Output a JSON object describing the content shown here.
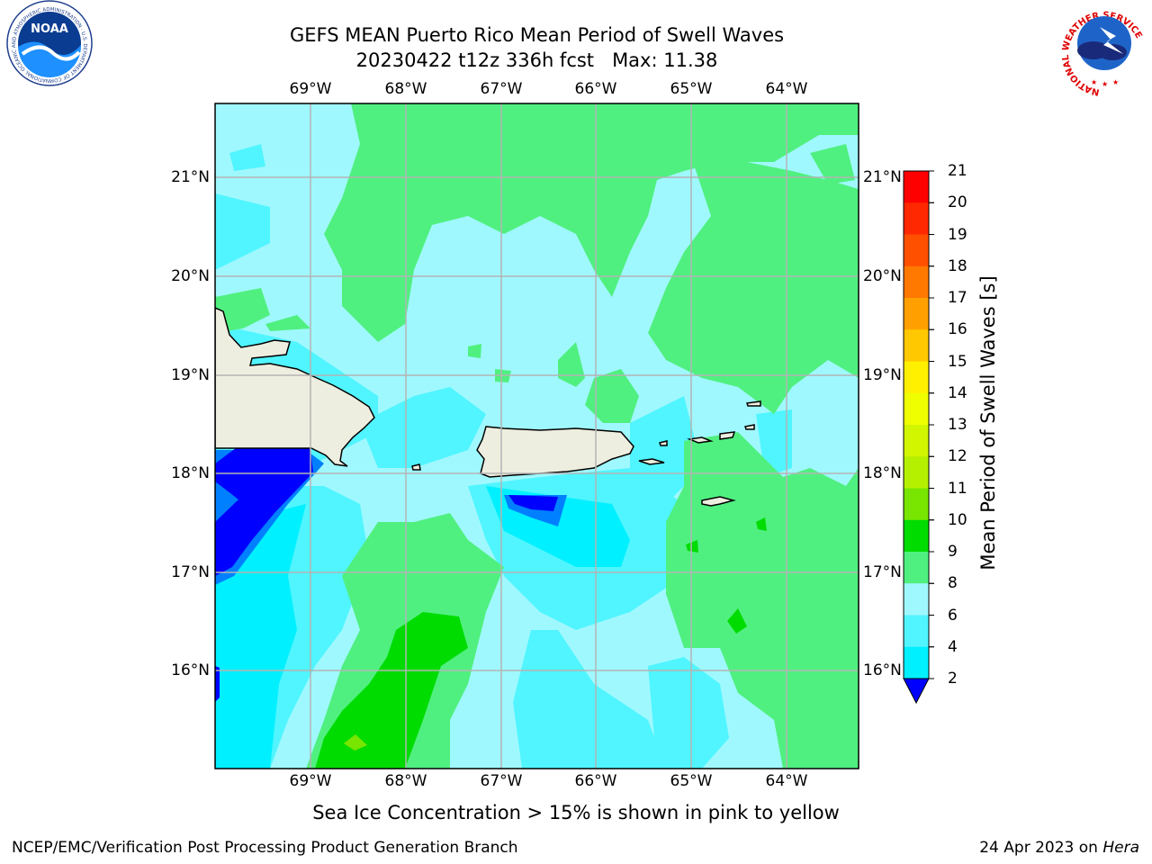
{
  "header": {
    "title_line1": "GEFS MEAN Puerto Rico Mean Period of Swell Waves",
    "title_line2": "20230422 t12z 336h fcst   Max: 11.38"
  },
  "map": {
    "lon_ticks": [
      "69°W",
      "68°W",
      "67°W",
      "66°W",
      "65°W",
      "64°W"
    ],
    "lat_ticks": [
      "21°N",
      "20°N",
      "19°N",
      "18°N",
      "17°N",
      "16°N"
    ]
  },
  "colorbar": {
    "title": "Mean Period of Swell Waves [s]",
    "ticks": [
      "21",
      "20",
      "19",
      "18",
      "17",
      "16",
      "15",
      "14",
      "13",
      "12",
      "11",
      "10",
      "9",
      "8",
      "6",
      "4",
      "2"
    ],
    "colors": [
      "#ff0000",
      "#ff2800",
      "#ff5000",
      "#ff7800",
      "#ffa000",
      "#ffc800",
      "#fff000",
      "#f0ff00",
      "#d2f500",
      "#b4f000",
      "#78e600",
      "#00dc00",
      "#50f080",
      "#a0f8ff",
      "#50f5ff",
      "#00f0ff",
      "#0080ff",
      "#0000ff"
    ]
  },
  "note": "Sea Ice Concentration > 15% is shown in pink to yellow",
  "footer": {
    "left": "NCEP/EMC/Verification Post Processing Product Generation Branch",
    "date": "24 Apr 2023 on ",
    "host": "Hera"
  },
  "logos": {
    "noaa_text": "NOAA",
    "noaa_ring": "NATIONAL OCEANIC AND ATMOSPHERIC ADMINISTRATION · U.S. DEPARTMENT OF COMMERCE",
    "nws_ring": "NATIONAL WEATHER SERVICE"
  }
}
